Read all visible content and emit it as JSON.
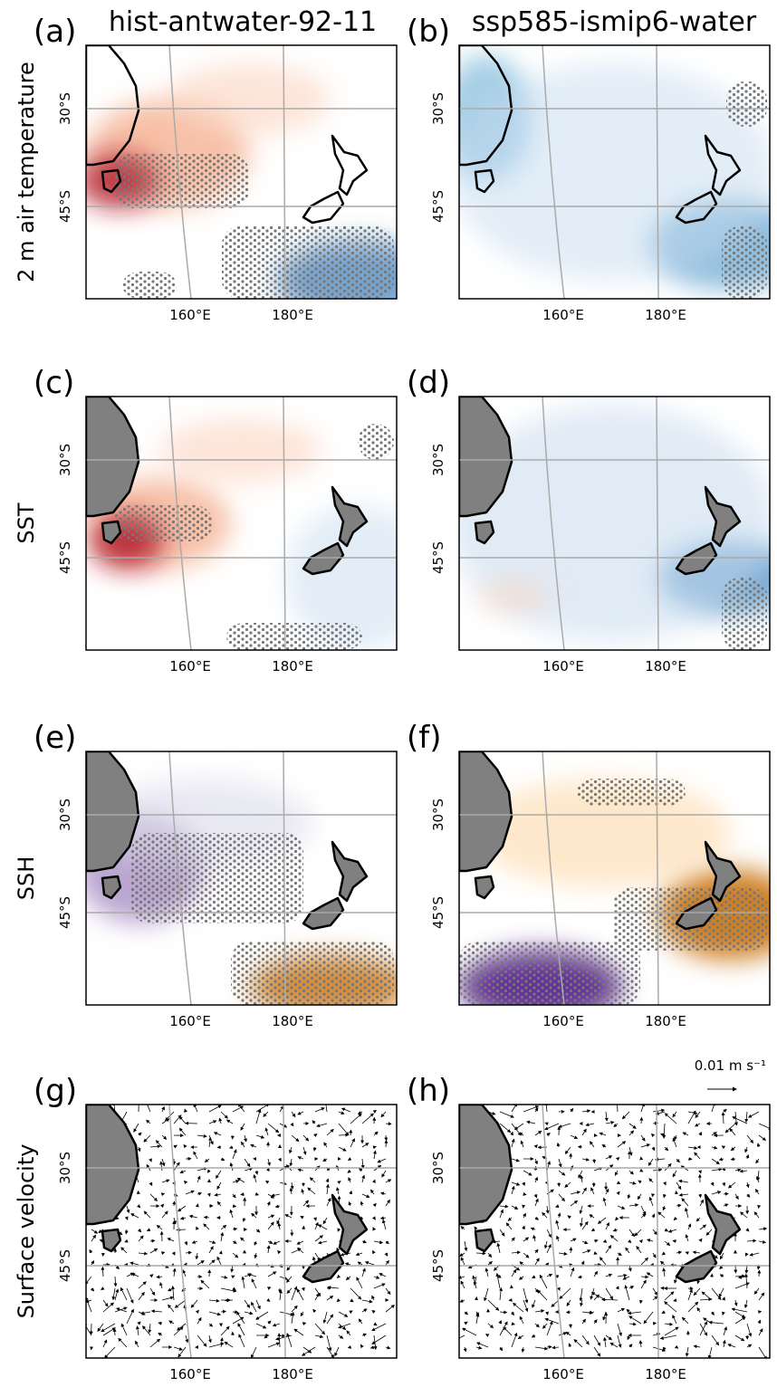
{
  "columns": [
    "hist-antwater-92-11",
    "ssp585-ismip6-water"
  ],
  "rows": [
    {
      "label": "2 m air temperature",
      "panels": [
        "(a)",
        "(b)"
      ]
    },
    {
      "label": "SST",
      "panels": [
        "(c)",
        "(d)"
      ]
    },
    {
      "label": "SSH",
      "panels": [
        "(e)",
        "(f)"
      ]
    },
    {
      "label": "Surface velocity",
      "panels": [
        "(g)",
        "(h)"
      ]
    }
  ],
  "lat_labels": [
    "30°S",
    "45°S"
  ],
  "lon_labels": [
    "160°E",
    "180°E"
  ],
  "scale_label": "0.01 m s⁻¹"
}
